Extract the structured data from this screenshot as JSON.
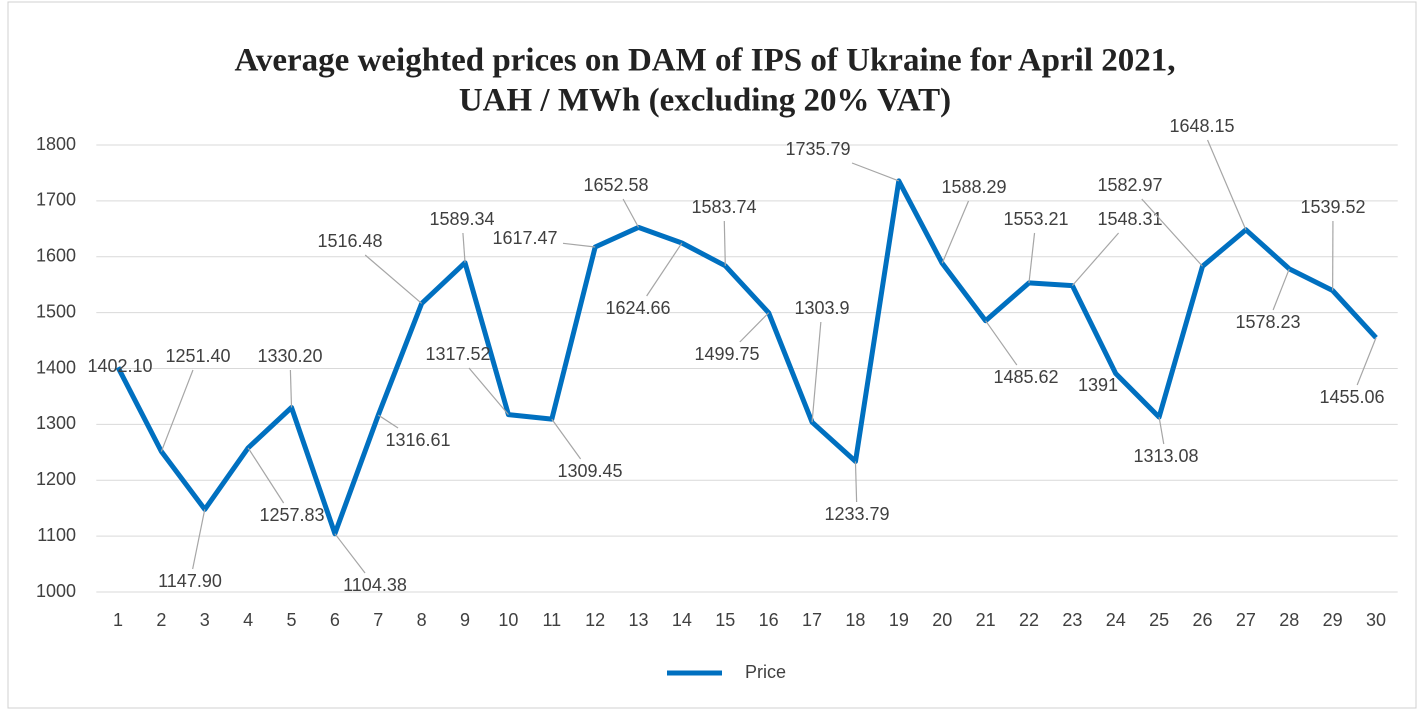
{
  "chart_data": {
    "type": "line",
    "title": "Average weighted prices on DAM of IPS of Ukraine for April 2021,",
    "subtitle": "UAH / MWh (excluding 20% VAT)",
    "categories": [
      1,
      2,
      3,
      4,
      5,
      6,
      7,
      8,
      9,
      10,
      11,
      12,
      13,
      14,
      15,
      16,
      17,
      18,
      19,
      20,
      21,
      22,
      23,
      24,
      25,
      26,
      27,
      28,
      29,
      30
    ],
    "series": [
      {
        "name": "Price",
        "color": "#0070c0",
        "values": [
          1402.1,
          1251.4,
          1147.9,
          1257.83,
          1330.2,
          1104.38,
          1316.61,
          1516.48,
          1589.34,
          1317.52,
          1309.45,
          1617.47,
          1652.58,
          1624.66,
          1583.74,
          1499.75,
          1303.9,
          1233.79,
          1735.79,
          1588.29,
          1485.62,
          1553.21,
          1548.31,
          1391,
          1313.08,
          1582.97,
          1648.15,
          1578.23,
          1539.52,
          1455.06
        ],
        "value_labels": [
          "1402.10",
          "1251.40",
          "1147.90",
          "1257.83",
          "1330.20",
          "1104.38",
          "1316.61",
          "1516.48",
          "1589.34",
          "1317.52",
          "1309.45",
          "1617.47",
          "1652.58",
          "1624.66",
          "1583.74",
          "1499.75",
          "1303.9",
          "1233.79",
          "1735.79",
          "1588.29",
          "1485.62",
          "1553.21",
          "1548.31",
          "1391",
          "1313.08",
          "1582.97",
          "1648.15",
          "1578.23",
          "1539.52",
          "1455.06"
        ]
      }
    ],
    "ylim": [
      1000,
      1800
    ],
    "yticks": [
      1000,
      1100,
      1200,
      1300,
      1400,
      1500,
      1600,
      1700,
      1800
    ],
    "grid": true,
    "legend": "bottom"
  }
}
